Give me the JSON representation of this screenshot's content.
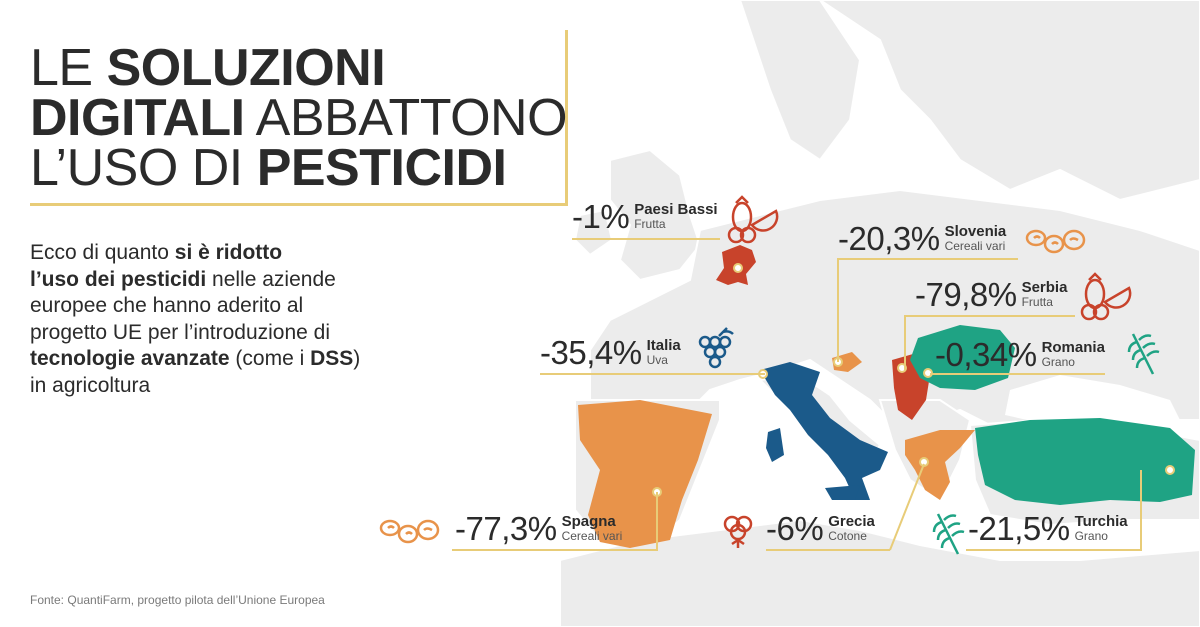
{
  "title": {
    "line1_pre": "LE ",
    "line1_bold": "SOLUZIONI",
    "line2_bold": "DIGITALI",
    "line2_post": " ABBATTONO",
    "line3_pre": "L’USO DI ",
    "line3_bold": "PESTICIDI"
  },
  "intro": {
    "p1": "Ecco di quanto ",
    "b1": "si è ridotto",
    "b2": "l’uso dei pesticidi",
    "p2": " nelle aziende europee che hanno aderito al progetto UE per l’introduzione di ",
    "b3": "tecnologie avanzate",
    "p3": " (come i ",
    "b4": "DSS",
    "p4": ") in agricoltura"
  },
  "source": "Fonte: QuantiFarm, progetto pilota dell’Unione Europea",
  "colors": {
    "accent_line": "#e8cc78",
    "red": "#c8432b",
    "orange": "#e8934a",
    "blue": "#1b5a8a",
    "teal": "#1fa384",
    "map_land": "#ececec",
    "map_border": "#ffffff"
  },
  "countries": [
    {
      "key": "paesi_bassi",
      "value": "-1%",
      "name": "Paesi Bassi",
      "crop": "Frutta",
      "icon": "fruit-icon"
    },
    {
      "key": "slovenia",
      "value": "-20,3%",
      "name": "Slovenia",
      "crop": "Cereali vari",
      "icon": "grains-icon"
    },
    {
      "key": "serbia",
      "value": "-79,8%",
      "name": "Serbia",
      "crop": "Frutta",
      "icon": "fruit-icon"
    },
    {
      "key": "italia",
      "value": "-35,4%",
      "name": "Italia",
      "crop": "Uva",
      "icon": "grapes-icon"
    },
    {
      "key": "romania",
      "value": "-0,34%",
      "name": "Romania",
      "crop": "Grano",
      "icon": "wheat-icon"
    },
    {
      "key": "spagna",
      "value": "-77,3%",
      "name": "Spagna",
      "crop": "Cereali vari",
      "icon": "grains-icon"
    },
    {
      "key": "grecia",
      "value": "-6%",
      "name": "Grecia",
      "crop": "Cotone",
      "icon": "cotton-icon"
    },
    {
      "key": "turchia",
      "value": "-21,5%",
      "name": "Turchia",
      "crop": "Grano",
      "icon": "wheat-icon"
    }
  ]
}
